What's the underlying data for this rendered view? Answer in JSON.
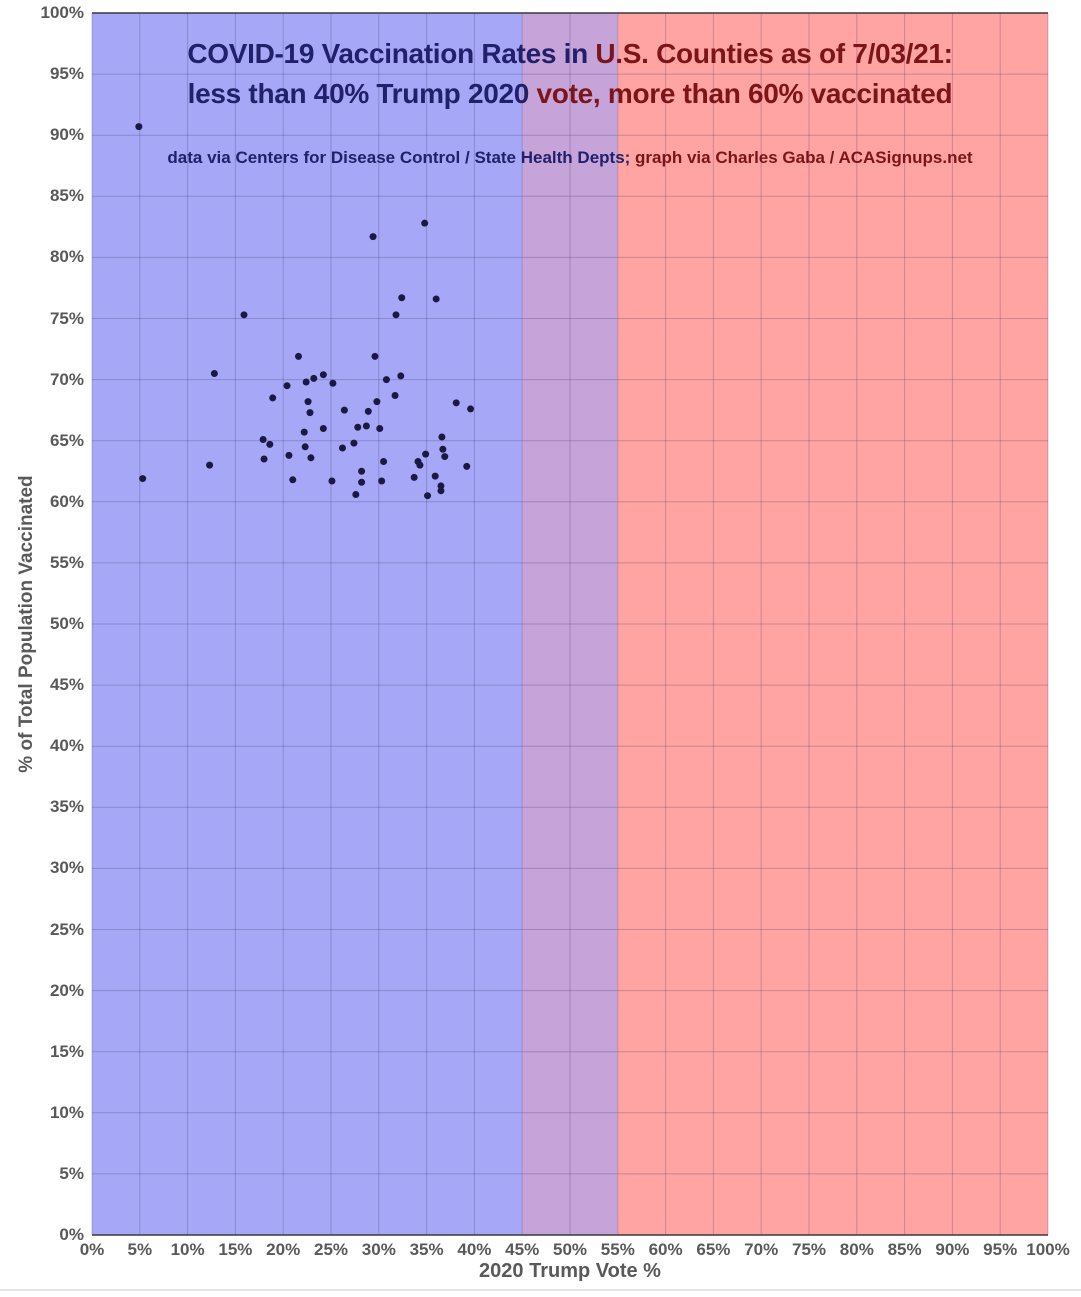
{
  "title": {
    "line1_left": "COVID-19 Vaccination Rates in ",
    "line1_right": "U.S. Counties as of 7/03/21:",
    "line2_left": "less than 40% Trump 2020 ",
    "line2_right": "vote, more than 60% vaccinated",
    "left_color": "#20206b",
    "right_color": "#7c1418"
  },
  "subtitle": {
    "left": "data via Centers for Disease Control / State Health Depts; ",
    "right": "graph via Charles Gaba / ACASignups.net"
  },
  "chart_data": {
    "type": "scatter",
    "title": "COVID-19 Vaccination Rates in U.S. Counties as of 7/03/21: less than 40% Trump 2020 vote, more than 60% vaccinated",
    "subtitle": "data via Centers for Disease Control / State Health Depts; graph via Charles Gaba / ACASignups.net",
    "xlabel": "2020 Trump Vote %",
    "ylabel": "% of Total Population Vaccinated",
    "xlim": [
      0,
      100
    ],
    "ylim": [
      0,
      100
    ],
    "tick_step": 5,
    "tick_suffix": "%",
    "grid": true,
    "grid_color": "rgba(60,60,100,0.28)",
    "frame_color": "#3a3a3a",
    "tick_label_color": "#595959",
    "bands": [
      {
        "name": "blue-band",
        "x0": 0,
        "x1": 45,
        "color": "#a7a7f7"
      },
      {
        "name": "purple-band",
        "x0": 45,
        "x1": 55,
        "color": "#c6a3d8"
      },
      {
        "name": "red-band",
        "x0": 55,
        "x1": 100,
        "color": "#ffa3a3"
      }
    ],
    "point_color": "#191943",
    "point_radius": 3.5,
    "points": [
      [
        4.9,
        90.7
      ],
      [
        34.8,
        82.8
      ],
      [
        29.4,
        81.7
      ],
      [
        32.4,
        76.7
      ],
      [
        36.0,
        76.6
      ],
      [
        15.9,
        75.3
      ],
      [
        31.8,
        75.3
      ],
      [
        21.6,
        71.9
      ],
      [
        29.6,
        71.9
      ],
      [
        12.8,
        70.5
      ],
      [
        24.2,
        70.4
      ],
      [
        32.3,
        70.3
      ],
      [
        23.2,
        70.1
      ],
      [
        30.8,
        70.0
      ],
      [
        22.4,
        69.8
      ],
      [
        25.2,
        69.7
      ],
      [
        20.4,
        69.5
      ],
      [
        31.7,
        68.7
      ],
      [
        18.9,
        68.5
      ],
      [
        22.6,
        68.2
      ],
      [
        29.8,
        68.2
      ],
      [
        38.1,
        68.1
      ],
      [
        39.6,
        67.6
      ],
      [
        26.4,
        67.5
      ],
      [
        28.9,
        67.4
      ],
      [
        22.8,
        67.3
      ],
      [
        28.7,
        66.2
      ],
      [
        27.8,
        66.1
      ],
      [
        24.2,
        66.0
      ],
      [
        30.1,
        66.0
      ],
      [
        22.2,
        65.7
      ],
      [
        36.6,
        65.3
      ],
      [
        17.9,
        65.1
      ],
      [
        27.4,
        64.8
      ],
      [
        18.6,
        64.7
      ],
      [
        22.3,
        64.5
      ],
      [
        26.2,
        64.4
      ],
      [
        36.7,
        64.3
      ],
      [
        34.9,
        63.9
      ],
      [
        20.6,
        63.8
      ],
      [
        36.9,
        63.7
      ],
      [
        22.9,
        63.6
      ],
      [
        18.0,
        63.5
      ],
      [
        30.5,
        63.3
      ],
      [
        34.1,
        63.3
      ],
      [
        12.3,
        63.0
      ],
      [
        34.3,
        63.0
      ],
      [
        39.2,
        62.9
      ],
      [
        28.2,
        62.5
      ],
      [
        35.9,
        62.1
      ],
      [
        33.7,
        62.0
      ],
      [
        5.3,
        61.9
      ],
      [
        21.0,
        61.8
      ],
      [
        25.1,
        61.7
      ],
      [
        30.3,
        61.7
      ],
      [
        28.2,
        61.6
      ],
      [
        36.5,
        61.3
      ],
      [
        36.5,
        60.9
      ],
      [
        27.6,
        60.6
      ],
      [
        35.1,
        60.5
      ]
    ]
  }
}
